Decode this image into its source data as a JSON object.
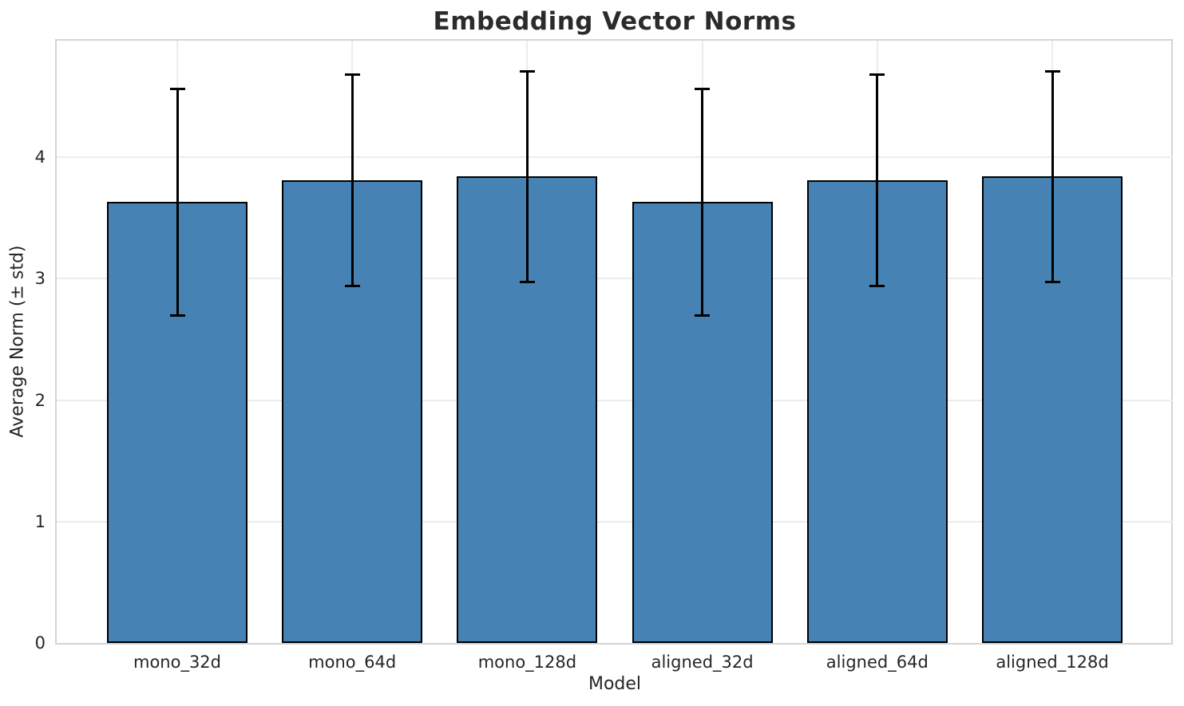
{
  "chart_data": {
    "type": "bar",
    "title": "Embedding Vector Norms",
    "xlabel": "Model",
    "ylabel": "Average Norm (± std)",
    "categories": [
      "mono_32d",
      "mono_64d",
      "mono_128d",
      "aligned_32d",
      "aligned_64d",
      "aligned_128d"
    ],
    "values": [
      3.63,
      3.81,
      3.84,
      3.63,
      3.81,
      3.84
    ],
    "errors_std": [
      0.93,
      0.87,
      0.87,
      0.93,
      0.87,
      0.87
    ],
    "yticks": [
      0,
      1,
      2,
      3,
      4
    ],
    "ylim": [
      0,
      4.96
    ],
    "grid": true,
    "legend_position": "none",
    "colors": {
      "bar_fill": "#4682b4",
      "bar_edge": "#000000",
      "error_bar": "#000000",
      "gridline": "#ececec",
      "spine": "#d4d4d4",
      "text": "#262626",
      "background": "#ffffff"
    }
  }
}
